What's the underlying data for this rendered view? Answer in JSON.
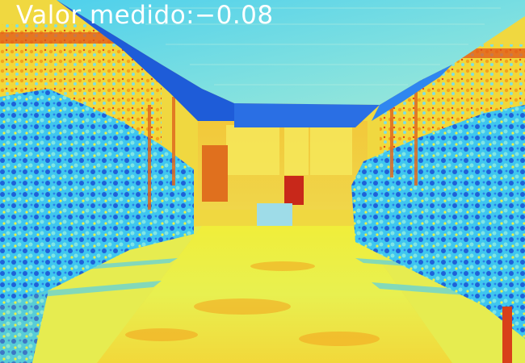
{
  "measurement": {
    "label": "Valor medido:",
    "value": "−0.08"
  },
  "palette": {
    "deep_blue": "#1a4fd8",
    "blue": "#2f86f0",
    "cyan": "#3cc8f0",
    "light_cyan": "#7fe0e8",
    "yellow_green": "#d8f04a",
    "yellow": "#f4ee2a",
    "orange": "#f4a21e",
    "red": "#d8321a"
  },
  "colormap": "jet",
  "scene": "greenhouse-aisle"
}
